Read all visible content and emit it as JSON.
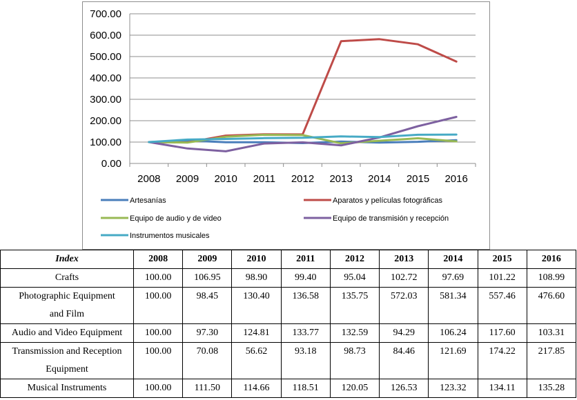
{
  "chart_data": {
    "type": "line",
    "title": "",
    "xlabel": "",
    "ylabel": "",
    "x": [
      "2008",
      "2009",
      "2010",
      "2011",
      "2012",
      "2013",
      "2014",
      "2015",
      "2016"
    ],
    "ylim": [
      0,
      700
    ],
    "yticks": [
      "0.00",
      "100.00",
      "200.00",
      "300.00",
      "400.00",
      "500.00",
      "600.00",
      "700.00"
    ],
    "grid": "horizontal",
    "legend_position": "bottom",
    "series": [
      {
        "name": "Artesanías",
        "color": "#4a7ebb",
        "values": [
          100.0,
          106.95,
          98.9,
          99.4,
          95.04,
          102.72,
          97.69,
          101.22,
          108.99
        ]
      },
      {
        "name": "Aparatos y películas fotográficas",
        "color": "#be4b48",
        "values": [
          100.0,
          98.45,
          130.4,
          136.58,
          135.75,
          572.03,
          581.34,
          557.46,
          476.6
        ]
      },
      {
        "name": "Equipo de audio y de video",
        "color": "#98b954",
        "values": [
          100.0,
          97.3,
          124.81,
          133.77,
          132.59,
          94.29,
          106.24,
          117.6,
          103.31
        ]
      },
      {
        "name": "Equipo de transmisión y recepción",
        "color": "#7d60a0",
        "values": [
          100.0,
          70.08,
          56.62,
          93.18,
          98.73,
          84.46,
          121.69,
          174.22,
          217.85
        ]
      },
      {
        "name": "Instrumentos musicales",
        "color": "#46aac5",
        "values": [
          100.0,
          111.5,
          114.66,
          118.51,
          120.05,
          126.53,
          123.32,
          134.11,
          135.28
        ]
      }
    ]
  },
  "table": {
    "header": [
      "Index",
      "2008",
      "2009",
      "2010",
      "2011",
      "2012",
      "2013",
      "2014",
      "2015",
      "2016"
    ],
    "rows": [
      {
        "label": [
          "Crafts"
        ],
        "values": [
          "100.00",
          "106.95",
          "98.90",
          "99.40",
          "95.04",
          "102.72",
          "97.69",
          "101.22",
          "108.99"
        ]
      },
      {
        "label": [
          "Photographic Equipment",
          "and Film"
        ],
        "values": [
          "100.00",
          "98.45",
          "130.40",
          "136.58",
          "135.75",
          "572.03",
          "581.34",
          "557.46",
          "476.60"
        ]
      },
      {
        "label": [
          "Audio and Video Equipment"
        ],
        "values": [
          "100.00",
          "97.30",
          "124.81",
          "133.77",
          "132.59",
          "94.29",
          "106.24",
          "117.60",
          "103.31"
        ]
      },
      {
        "label": [
          "Transmission and Reception",
          "Equipment"
        ],
        "values": [
          "100.00",
          "70.08",
          "56.62",
          "93.18",
          "98.73",
          "84.46",
          "121.69",
          "174.22",
          "217.85"
        ]
      },
      {
        "label": [
          "Musical Instruments"
        ],
        "values": [
          "100.00",
          "111.50",
          "114.66",
          "118.51",
          "120.05",
          "126.53",
          "123.32",
          "134.11",
          "135.28"
        ]
      }
    ]
  }
}
